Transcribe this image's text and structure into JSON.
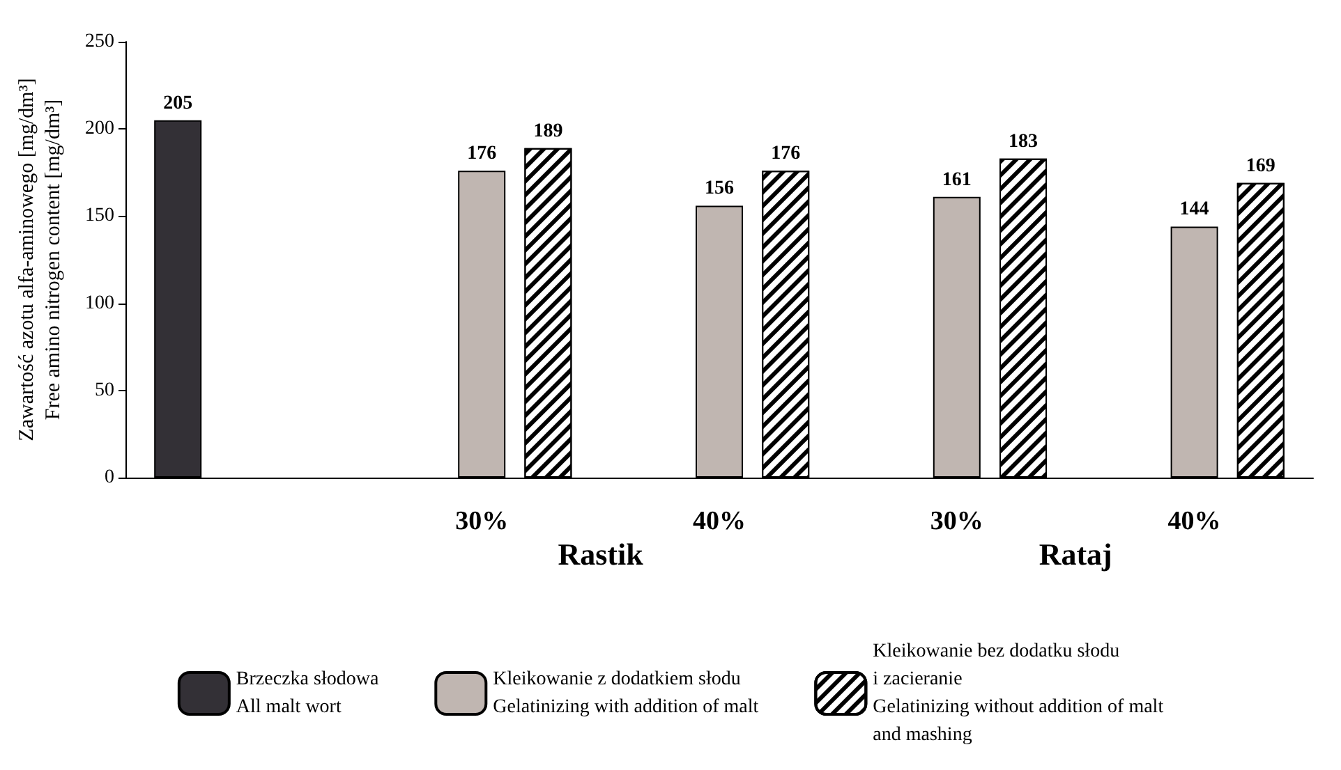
{
  "chart_data": {
    "type": "bar",
    "ylabel": "Zawartość azotu alfa-aminowego [mg/dm³]\nFree amino nitrogen content [mg/dm³]",
    "categories": [
      null,
      "30%",
      "40%",
      "30%",
      "40%"
    ],
    "series": [
      {
        "name": "Brzeczka słodowa\nAll malt wort",
        "color": "#333036",
        "values": [
          205,
          null,
          null,
          null,
          null
        ]
      },
      {
        "name": "Kleikowanie z dodatkiem słodu\nGelatinizing with addition of malt",
        "color": "#c0b6b1",
        "values": [
          null,
          176,
          156,
          161,
          144
        ]
      },
      {
        "name": "Kleikowanie bez dodatku słodu\ni zacieranie\nGelatinizing without addition of malt\nand mashing",
        "color": "#000000",
        "values": [
          null,
          189,
          176,
          183,
          169
        ]
      }
    ],
    "annotations": [
      "Rastik",
      "Rataj"
    ],
    "ylim": [
      0,
      250
    ],
    "yticks": [
      0,
      50,
      100,
      150,
      200,
      250
    ],
    "grid": false,
    "legend": "bottom",
    "data_labels": true
  }
}
